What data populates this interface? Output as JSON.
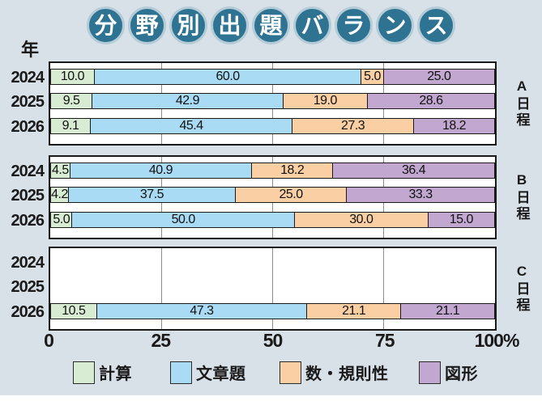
{
  "page": {
    "background": "#d9e1e8"
  },
  "title": {
    "text": "分野別出題バランス",
    "badges": [
      "分",
      "野",
      "別",
      "出",
      "題",
      "バ",
      "ラ",
      "ン",
      "ス"
    ],
    "badge_color": "#2e7492",
    "ring_color": "#b4cbd8",
    "text_color": "#ffffff"
  },
  "y_axis_unit": "年",
  "x_axis": {
    "tick_labels": [
      "0",
      "25",
      "50",
      "75",
      "100%"
    ],
    "tick_positions": [
      0,
      25,
      50,
      75,
      100
    ]
  },
  "legend": {
    "items": [
      {
        "label": "計算",
        "color": "#d8ecd3"
      },
      {
        "label": "文章題",
        "color": "#a9dbf5"
      },
      {
        "label": "数・規則性",
        "color": "#f9cfa3"
      },
      {
        "label": "図形",
        "color": "#c2a8d1"
      }
    ]
  },
  "chart_data": {
    "type": "bar",
    "stacked": true,
    "orientation": "horizontal",
    "unit": "percent",
    "xlim": [
      0,
      100
    ],
    "x_ticks": [
      0,
      25,
      50,
      75,
      100
    ],
    "series_names": [
      "計算",
      "文章題",
      "数・規則性",
      "図形"
    ],
    "series_colors": [
      "#d8ecd3",
      "#a9dbf5",
      "#f9cfa3",
      "#c2a8d1"
    ],
    "groups": [
      {
        "label": "A日程",
        "rows": [
          {
            "year": "2024",
            "values": [
              10.0,
              60.0,
              5.0,
              25.0
            ]
          },
          {
            "year": "2025",
            "values": [
              9.5,
              42.9,
              19.0,
              28.6
            ]
          },
          {
            "year": "2026",
            "values": [
              9.1,
              45.4,
              27.3,
              18.2
            ]
          }
        ]
      },
      {
        "label": "B日程",
        "rows": [
          {
            "year": "2024",
            "values": [
              4.5,
              40.9,
              18.2,
              36.4
            ]
          },
          {
            "year": "2025",
            "values": [
              4.2,
              37.5,
              25.0,
              33.3
            ]
          },
          {
            "year": "2026",
            "values": [
              5.0,
              50.0,
              30.0,
              15.0
            ]
          }
        ]
      },
      {
        "label": "C日程",
        "rows": [
          {
            "year": "2024",
            "values": []
          },
          {
            "year": "2025",
            "values": []
          },
          {
            "year": "2026",
            "values": [
              10.5,
              47.3,
              21.1,
              21.1
            ]
          }
        ]
      }
    ]
  }
}
